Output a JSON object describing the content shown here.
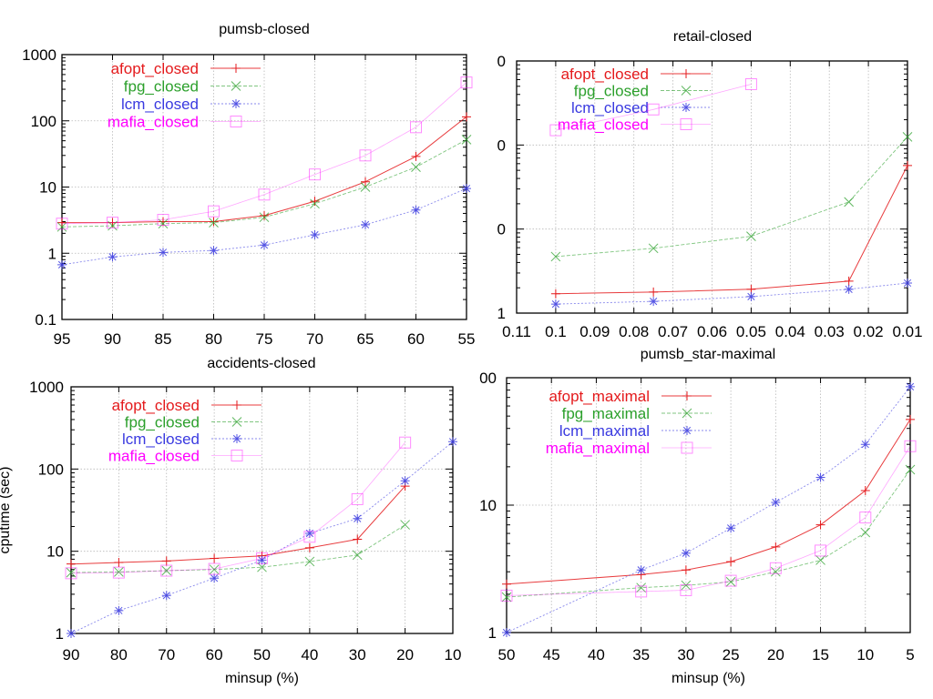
{
  "chart_data": [
    {
      "id": "pumsb-closed",
      "type": "line",
      "title": "pumsb-closed",
      "xlabel": "",
      "ylabel": "",
      "yscale": "log",
      "ylim": [
        0.1,
        1000
      ],
      "yticks": [
        "0.1",
        "1",
        "10",
        "100",
        "1000"
      ],
      "xlim": [
        95,
        55
      ],
      "xticks": [
        "95",
        "90",
        "85",
        "80",
        "75",
        "70",
        "65",
        "60",
        "55"
      ],
      "grid": true,
      "legend_position": "top-left",
      "x": [
        95,
        90,
        85,
        80,
        75,
        70,
        65,
        60,
        55
      ],
      "series": [
        {
          "name": "afopt_closed",
          "color": "#e41a1c",
          "marker": "plus",
          "values": [
            2.9,
            2.9,
            3.0,
            3.0,
            3.7,
            6.1,
            12,
            29,
            115
          ]
        },
        {
          "name": "fpg_closed",
          "color": "#2ca02c",
          "marker": "cross",
          "values": [
            2.5,
            2.6,
            2.8,
            2.9,
            3.5,
            5.6,
            10,
            20,
            52
          ]
        },
        {
          "name": "lcm_closed",
          "color": "#3a3ae0",
          "marker": "star",
          "values": [
            0.67,
            0.88,
            1.03,
            1.1,
            1.33,
            1.9,
            2.7,
            4.5,
            9.5
          ]
        },
        {
          "name": "mafia_closed",
          "color": "#ff00ff",
          "marker": "square",
          "values": [
            2.8,
            2.9,
            3.2,
            4.3,
            7.7,
            15.5,
            30,
            80,
            380
          ]
        }
      ]
    },
    {
      "id": "retail-closed",
      "type": "line",
      "title": "retail-closed",
      "xlabel": "",
      "ylabel": "",
      "yscale": "log",
      "ylim": [
        1,
        1000
      ],
      "yticks": [
        "1",
        "0",
        "0",
        "0"
      ],
      "xlim": [
        0.11,
        0.01
      ],
      "xticks": [
        "0.11",
        "0.1",
        "0.09",
        "0.08",
        "0.07",
        "0.06",
        "0.05",
        "0.04",
        "0.03",
        "0.02",
        "0.01"
      ],
      "grid": true,
      "legend_position": "top-left",
      "x": [
        0.1,
        0.075,
        0.05,
        0.025,
        0.01
      ],
      "series": [
        {
          "name": "afopt_closed",
          "color": "#e41a1c",
          "marker": "plus",
          "values": [
            1.7,
            1.78,
            1.92,
            2.4,
            57
          ]
        },
        {
          "name": "fpg_closed",
          "color": "#2ca02c",
          "marker": "cross",
          "values": [
            4.7,
            5.9,
            8.2,
            21,
            125
          ]
        },
        {
          "name": "lcm_closed",
          "color": "#3a3ae0",
          "marker": "star",
          "values": [
            1.28,
            1.38,
            1.57,
            1.92,
            2.28
          ]
        },
        {
          "name": "mafia_closed",
          "color": "#ff00ff",
          "marker": "square",
          "values": [
            150,
            265,
            530,
            null,
            null
          ]
        }
      ]
    },
    {
      "id": "accidents-closed",
      "type": "line",
      "title": "accidents-closed",
      "xlabel": "minsup (%)",
      "ylabel": "cputime (sec)",
      "yscale": "log",
      "ylim": [
        1,
        1000
      ],
      "yticks": [
        "1",
        "10",
        "100",
        "1000"
      ],
      "xlim": [
        90,
        10
      ],
      "xticks": [
        "90",
        "80",
        "70",
        "60",
        "50",
        "40",
        "30",
        "20",
        "10"
      ],
      "grid": true,
      "legend_position": "top-left",
      "x": [
        90,
        80,
        70,
        60,
        50,
        40,
        30,
        20,
        10
      ],
      "series": [
        {
          "name": "afopt_closed",
          "color": "#e41a1c",
          "marker": "plus",
          "values": [
            7.0,
            7.3,
            7.6,
            8.2,
            8.8,
            11,
            14,
            62,
            null
          ]
        },
        {
          "name": "fpg_closed",
          "color": "#2ca02c",
          "marker": "cross",
          "values": [
            5.5,
            5.6,
            5.8,
            6.0,
            6.4,
            7.5,
            9,
            21,
            null
          ]
        },
        {
          "name": "lcm_closed",
          "color": "#3a3ae0",
          "marker": "star",
          "values": [
            1.0,
            1.9,
            2.9,
            4.7,
            7.8,
            16.5,
            25,
            72,
            215
          ]
        },
        {
          "name": "mafia_closed",
          "color": "#ff00ff",
          "marker": "square",
          "values": [
            5.4,
            5.5,
            5.8,
            6.1,
            8.2,
            15,
            43,
            210,
            null
          ]
        }
      ]
    },
    {
      "id": "pumsb_star-maximal",
      "type": "line",
      "title": "pumsb_star-maximal",
      "xlabel": "minsup (%)",
      "ylabel": "",
      "yscale": "log",
      "ylim": [
        1,
        100
      ],
      "yticks": [
        "1",
        "10",
        "00"
      ],
      "xlim": [
        50,
        5
      ],
      "xticks": [
        "50",
        "45",
        "40",
        "35",
        "30",
        "25",
        "20",
        "15",
        "10",
        "5"
      ],
      "grid": true,
      "legend_position": "top-left",
      "x": [
        50,
        35,
        30,
        25,
        20,
        15,
        10,
        5
      ],
      "series": [
        {
          "name": "afopt_maximal",
          "color": "#e41a1c",
          "marker": "plus",
          "values": [
            2.4,
            2.85,
            3.1,
            3.6,
            4.7,
            7,
            13,
            47
          ]
        },
        {
          "name": "fpg_maximal",
          "color": "#2ca02c",
          "marker": "cross",
          "values": [
            1.9,
            2.25,
            2.35,
            2.5,
            3.0,
            3.7,
            6.1,
            19
          ]
        },
        {
          "name": "lcm_maximal",
          "color": "#3a3ae0",
          "marker": "star",
          "values": [
            1.0,
            3.1,
            4.2,
            6.6,
            10.5,
            16.5,
            30,
            85
          ]
        },
        {
          "name": "mafia_maximal",
          "color": "#ff00ff",
          "marker": "square",
          "values": [
            1.95,
            2.1,
            2.15,
            2.55,
            3.2,
            4.4,
            8,
            29
          ]
        }
      ]
    }
  ]
}
